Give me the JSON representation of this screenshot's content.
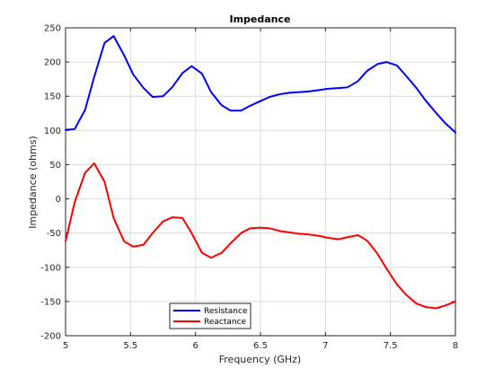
{
  "chart_data": {
    "type": "line",
    "title": "Impedance",
    "xlabel": "Frequency (GHz)",
    "ylabel": "Impedance (ohms)",
    "xlim": [
      5,
      8
    ],
    "ylim": [
      -200,
      250
    ],
    "x_ticks": [
      5,
      5.5,
      6,
      6.5,
      7,
      7.5,
      8
    ],
    "x_tick_labels": [
      "5",
      "5.5",
      "6",
      "6.5",
      "7",
      "7.5",
      "8"
    ],
    "y_ticks": [
      -200,
      -150,
      -100,
      -50,
      0,
      50,
      100,
      150,
      200,
      250
    ],
    "y_tick_labels": [
      "-200",
      "-150",
      "-100",
      "-50",
      "0",
      "50",
      "100",
      "150",
      "200",
      "250"
    ],
    "grid": true,
    "legend_position": "bottom-left",
    "x": [
      5.0,
      5.07,
      5.15,
      5.22,
      5.3,
      5.37,
      5.45,
      5.52,
      5.6,
      5.67,
      5.75,
      5.82,
      5.9,
      5.97,
      6.05,
      6.12,
      6.2,
      6.27,
      6.35,
      6.42,
      6.5,
      6.57,
      6.65,
      6.72,
      6.8,
      6.87,
      6.95,
      7.02,
      7.1,
      7.17,
      7.25,
      7.32,
      7.4,
      7.47,
      7.55,
      7.62,
      7.7,
      7.77,
      7.85,
      7.92,
      8.0
    ],
    "series": [
      {
        "name": "Resistance",
        "color": "#0000ff",
        "values": [
          101,
          102,
          130,
          178,
          228,
          238,
          210,
          182,
          162,
          149,
          150,
          163,
          184,
          194,
          183,
          156,
          137,
          129,
          129,
          136,
          143,
          149,
          153,
          155,
          156,
          157,
          159,
          161,
          162,
          163,
          172,
          187,
          197,
          200,
          195,
          180,
          162,
          144,
          126,
          111,
          97
        ]
      },
      {
        "name": "Reactance",
        "color": "#ff0000",
        "values": [
          -62,
          -5,
          38,
          52,
          25,
          -28,
          -62,
          -70,
          -67,
          -50,
          -33,
          -27,
          -28,
          -50,
          -79,
          -86,
          -79,
          -65,
          -50,
          -43,
          -42,
          -43,
          -47,
          -49,
          -51,
          -52,
          -54,
          -57,
          -59,
          -56,
          -53,
          -61,
          -80,
          -102,
          -125,
          -140,
          -153,
          -158,
          -160,
          -156,
          -150
        ]
      }
    ]
  }
}
